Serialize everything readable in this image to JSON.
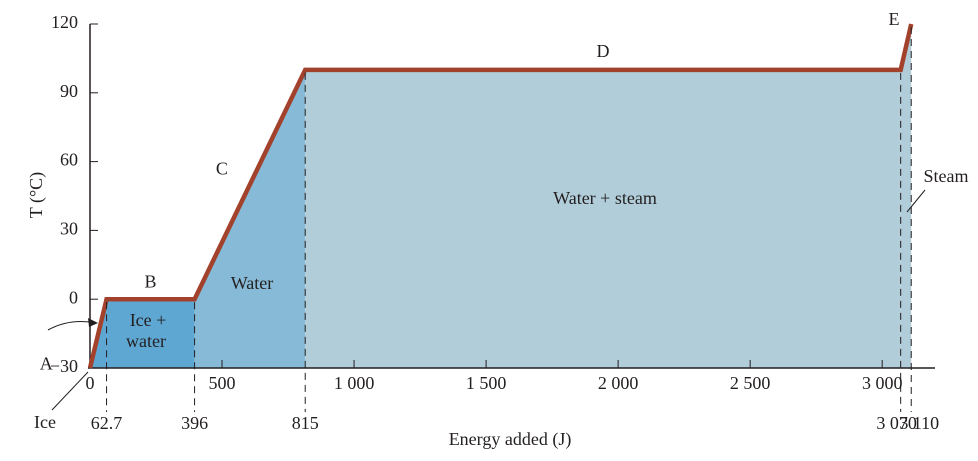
{
  "chart_data": {
    "type": "line",
    "x_label": "Energy added (J)",
    "y_label": "T (°C)",
    "xlim": [
      0,
      3200
    ],
    "ylim": [
      -30,
      120
    ],
    "xticks": [
      0,
      {
        "value": 500,
        "label": "500"
      },
      {
        "value": 1000,
        "label": "1 000"
      },
      {
        "value": 1500,
        "label": "1 500"
      },
      {
        "value": 2000,
        "label": "2 000"
      },
      {
        "value": 2500,
        "label": "2 500"
      },
      {
        "value": 3000,
        "label": "3 000"
      }
    ],
    "yticks": [
      {
        "value": -30,
        "label": "−30"
      },
      0,
      30,
      60,
      90,
      120
    ],
    "marked_x": [
      62.7,
      396,
      815,
      {
        "value": 3070,
        "label": "3 070"
      },
      {
        "value": 3110,
        "label": "3 110"
      }
    ],
    "series": [
      {
        "color": "#a3422c",
        "x": [
          0,
          62.7,
          396,
          815,
          3070,
          3110
        ],
        "values": [
          -30,
          0,
          0,
          100,
          100,
          120
        ],
        "segment_labels": [
          "A",
          "B",
          "C",
          "D",
          "E"
        ],
        "segment_colors": [
          "#5ea7d2",
          "#5ea7d2",
          "#86bad6",
          "#b1cdd9",
          "#b1cdd9"
        ]
      }
    ],
    "region_labels": [
      "Ice +",
      "water",
      "Water",
      "Water + steam"
    ],
    "annotations": [
      "Ice",
      "Steam"
    ]
  }
}
